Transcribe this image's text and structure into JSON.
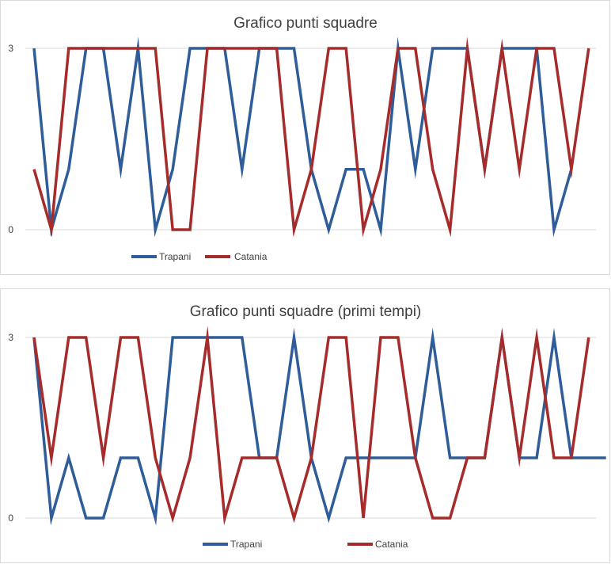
{
  "chart_data": [
    {
      "type": "line",
      "title": "Grafico punti squadre",
      "xlabel": "",
      "ylabel": "",
      "ylim": [
        0,
        3
      ],
      "yticks": [
        0,
        3
      ],
      "grid": "horizontal",
      "legend_position": "bottom-left",
      "series": [
        {
          "name": "Trapani",
          "color": "#2e5d99",
          "values": [
            3,
            0,
            1,
            3,
            3,
            1,
            3,
            0,
            1,
            3,
            3,
            3,
            1,
            3,
            3,
            3,
            1,
            0,
            1,
            1,
            0,
            3,
            1,
            3,
            3,
            3,
            1,
            3,
            3,
            3,
            0,
            1
          ]
        },
        {
          "name": "Catania",
          "color": "#a62b2b",
          "values": [
            1,
            0,
            3,
            3,
            3,
            3,
            3,
            3,
            0,
            0,
            3,
            3,
            3,
            3,
            3,
            0,
            1,
            3,
            3,
            0,
            1,
            3,
            3,
            1,
            0,
            3,
            1,
            3,
            1,
            3,
            3,
            1,
            3
          ]
        }
      ]
    },
    {
      "type": "line",
      "title": "Grafico punti squadre (primi tempi)",
      "xlabel": "",
      "ylabel": "",
      "ylim": [
        0,
        3
      ],
      "yticks": [
        0,
        3
      ],
      "grid": "horizontal",
      "legend_position": "bottom-center",
      "series": [
        {
          "name": "Trapani",
          "color": "#2e5d99",
          "values": [
            3,
            0,
            1,
            0,
            0,
            1,
            1,
            0,
            3,
            3,
            3,
            3,
            3,
            1,
            1,
            3,
            1,
            0,
            1,
            1,
            1,
            1,
            1,
            3,
            1,
            1,
            1,
            3,
            1,
            1,
            3,
            1,
            1,
            1
          ]
        },
        {
          "name": "Catania",
          "color": "#a62b2b",
          "values": [
            3,
            1,
            3,
            3,
            1,
            3,
            3,
            1,
            0,
            1,
            3,
            0,
            1,
            1,
            1,
            0,
            1,
            3,
            3,
            0,
            3,
            3,
            1,
            0,
            0,
            1,
            1,
            3,
            1,
            3,
            1,
            1,
            3
          ]
        }
      ]
    }
  ]
}
